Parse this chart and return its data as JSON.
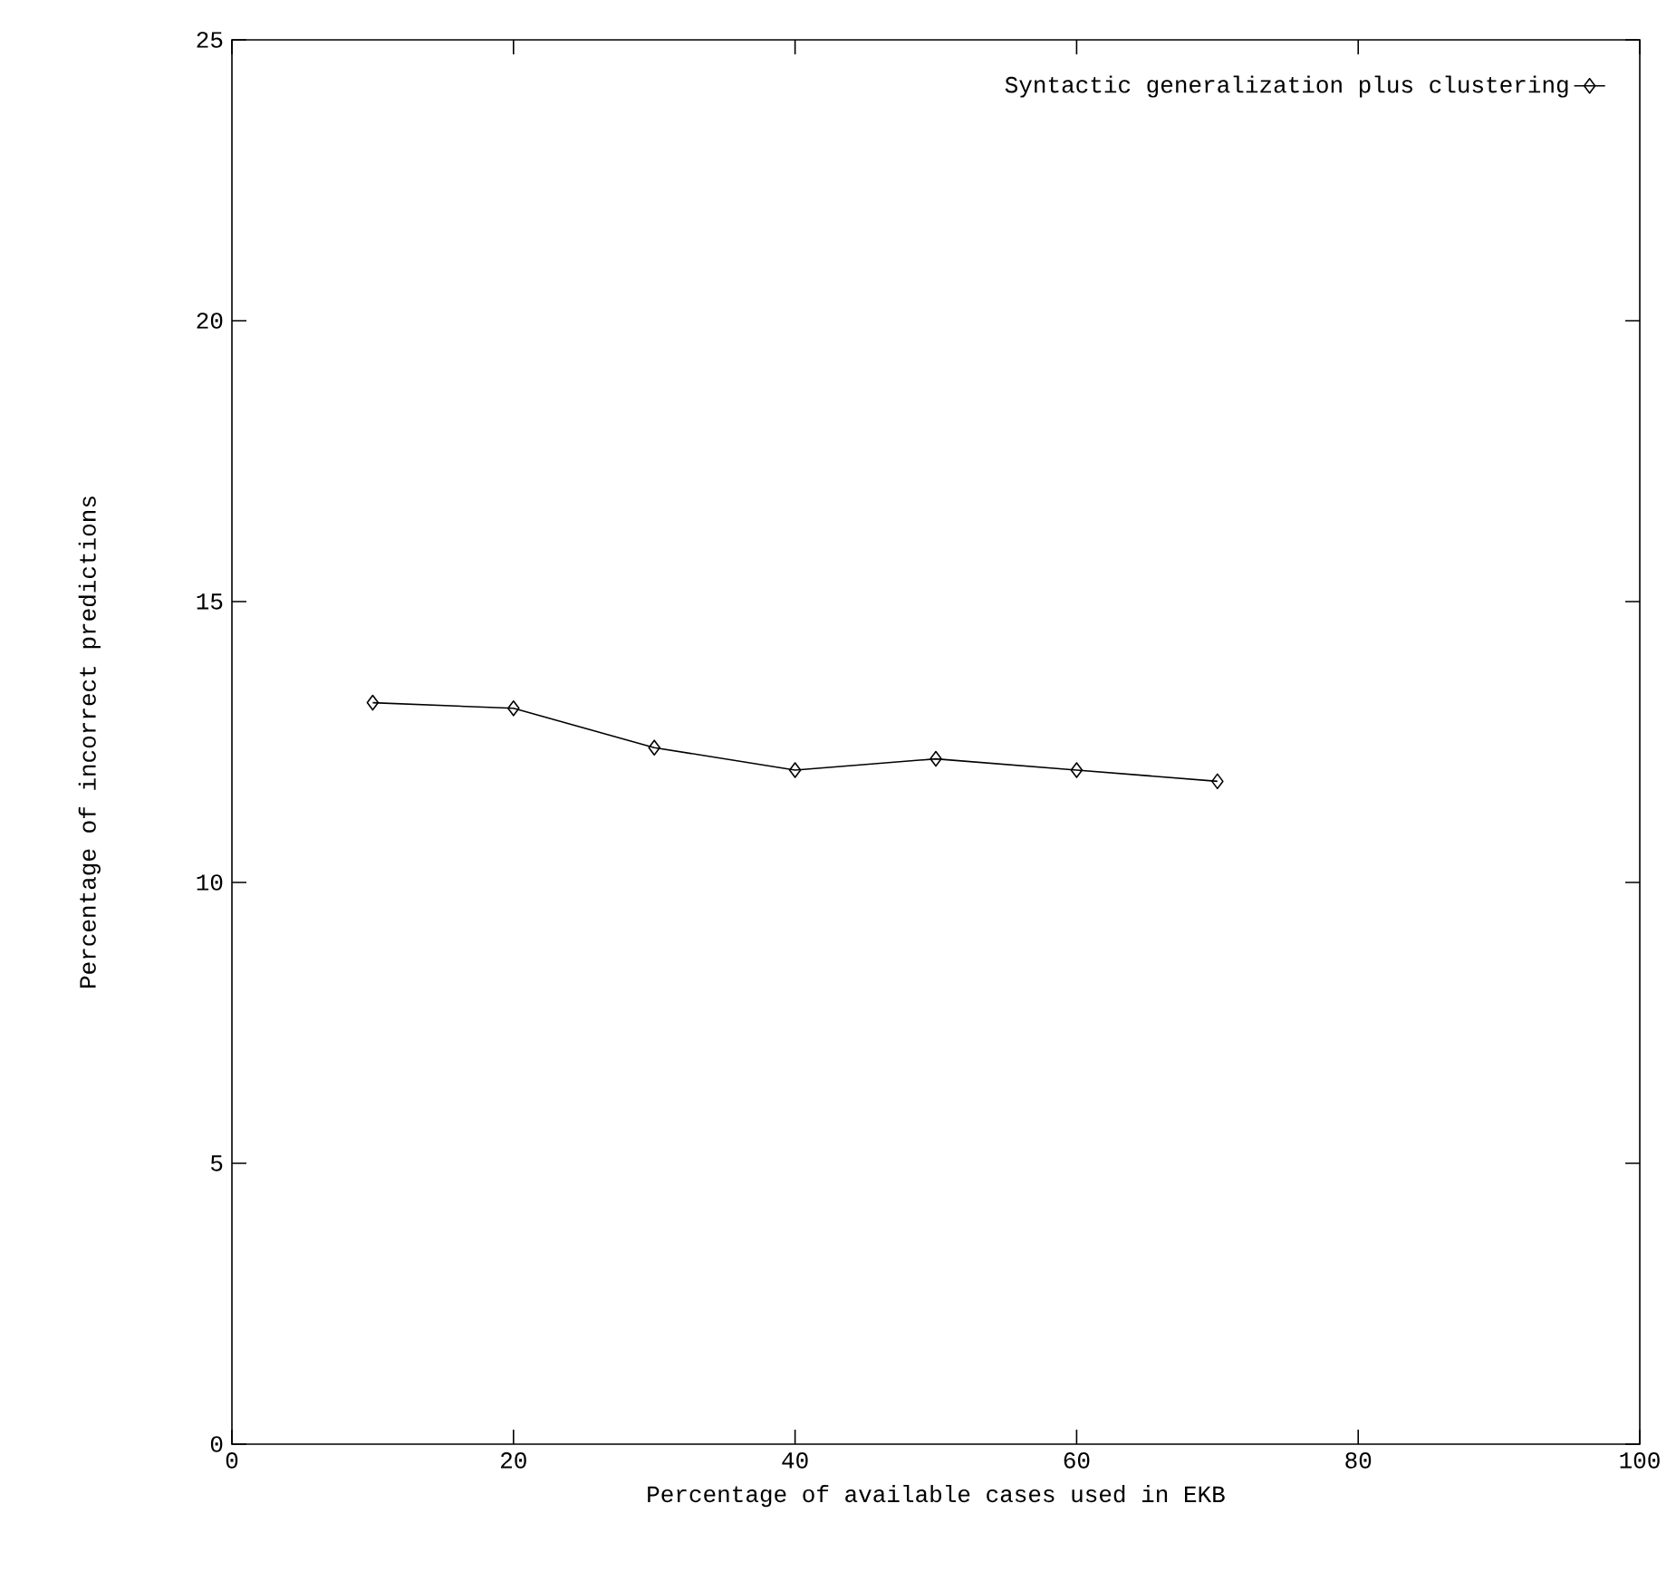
{
  "chart_data": {
    "type": "line",
    "xlabel": "Percentage of available cases used in EKB",
    "ylabel": "Percentage of incorrect predictions",
    "x": [
      10,
      20,
      30,
      40,
      50,
      60,
      70
    ],
    "series": [
      {
        "name": "Syntactic generalization plus clustering",
        "color": "#000000",
        "values": [
          13.2,
          13.1,
          12.4,
          12.0,
          12.2,
          12.0,
          11.8
        ]
      }
    ],
    "xlim": [
      0,
      100
    ],
    "ylim": [
      0,
      25
    ],
    "xticks": [
      0,
      20,
      40,
      60,
      80,
      100
    ],
    "yticks": [
      0,
      5,
      10,
      15,
      20,
      25
    ],
    "marker": "diamond",
    "line_style": "solid",
    "legend": "top right",
    "grid": false
  }
}
